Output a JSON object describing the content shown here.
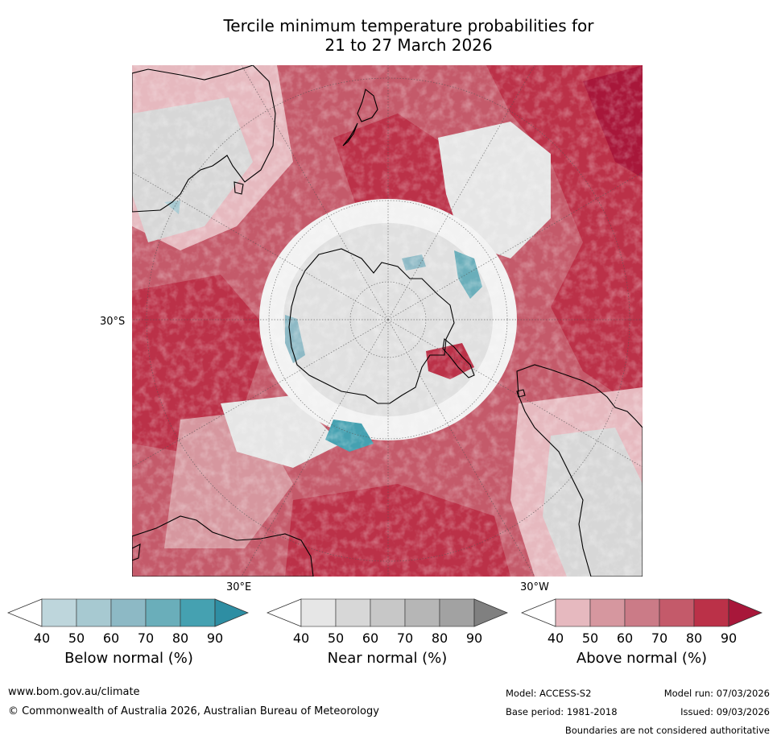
{
  "title": {
    "line1": "Tercile minimum temperature probabilities for",
    "line2": "21 to 27 March 2026"
  },
  "map": {
    "projection": "south-polar-stereographic",
    "labels": {
      "lat": "30°S",
      "lon_east": "30°E",
      "lon_west": "30°W"
    },
    "regions": [
      "Australia",
      "New Zealand",
      "Antarctica",
      "South America",
      "Southern Africa"
    ]
  },
  "legend": {
    "ticks": [
      "40",
      "50",
      "60",
      "70",
      "80",
      "90"
    ],
    "bars": [
      {
        "name": "below",
        "label": "Below normal (%)",
        "colors": [
          "#ffffff",
          "#bed6dc",
          "#a7c9d1",
          "#8db9c5",
          "#6aaeba",
          "#45a1b1",
          "#2e8ea3"
        ]
      },
      {
        "name": "near",
        "label": "Near normal (%)",
        "colors": [
          "#ffffff",
          "#e6e6e6",
          "#d7d7d7",
          "#c7c7c7",
          "#b6b6b6",
          "#a2a2a2",
          "#808080"
        ]
      },
      {
        "name": "above",
        "label": "Above normal (%)",
        "colors": [
          "#ffffff",
          "#e6b9bf",
          "#d6979f",
          "#cb7b87",
          "#c45a6a",
          "#bb3148",
          "#a8173a"
        ]
      }
    ]
  },
  "footer": {
    "url": "www.bom.gov.au/climate",
    "copyright": "© Commonwealth of Australia 2026, Australian Bureau of Meteorology",
    "model": "Model: ACCESS-S2",
    "base_period": "Base period: 1981-2018",
    "model_run": "Model run: 07/03/2026",
    "issued": "Issued: 09/03/2026",
    "disclaimer": "Boundaries are not considered authoritative"
  }
}
